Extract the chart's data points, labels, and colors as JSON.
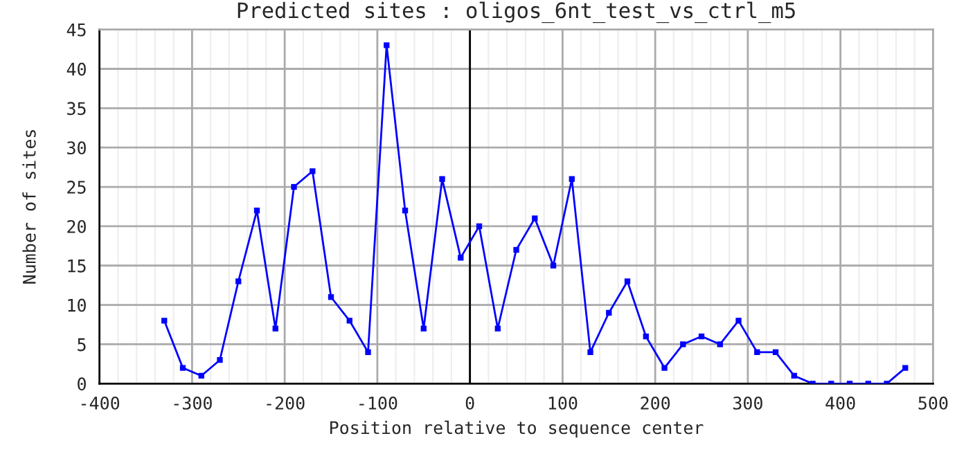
{
  "chart_data": {
    "type": "line",
    "title": "Predicted sites : oligos_6nt_test_vs_ctrl_m5",
    "xlabel": "Position relative to sequence center",
    "ylabel": "Number of sites",
    "x": [
      -330,
      -310,
      -290,
      -270,
      -250,
      -230,
      -210,
      -190,
      -170,
      -150,
      -130,
      -110,
      -90,
      -70,
      -50,
      -30,
      -10,
      10,
      30,
      50,
      70,
      90,
      110,
      130,
      150,
      170,
      190,
      210,
      230,
      250,
      270,
      290,
      310,
      330,
      350,
      370,
      390,
      410,
      430,
      450,
      470
    ],
    "series": [
      {
        "color": "#0000ff",
        "values": [
          8,
          2,
          1,
          3,
          13,
          22,
          7,
          25,
          27,
          11,
          8,
          4,
          43,
          22,
          7,
          26,
          16,
          20,
          7,
          17,
          21,
          15,
          26,
          4,
          9,
          13,
          6,
          2,
          5,
          6,
          5,
          8,
          4,
          4,
          1,
          0,
          0,
          0,
          0,
          0,
          2
        ]
      }
    ],
    "xlim": [
      -400,
      500
    ],
    "xticks": [
      -400,
      -300,
      -200,
      -100,
      0,
      100,
      200,
      300,
      400,
      500
    ],
    "ylim": [
      0,
      45
    ],
    "yticks": [
      0,
      5,
      10,
      15,
      20,
      25,
      30,
      35,
      40,
      45
    ],
    "ref_lines": [
      {
        "axis": "x",
        "value": 0,
        "color": "#000000"
      }
    ],
    "grid": true,
    "marker": "square",
    "line_style": "solid",
    "legend": false
  }
}
